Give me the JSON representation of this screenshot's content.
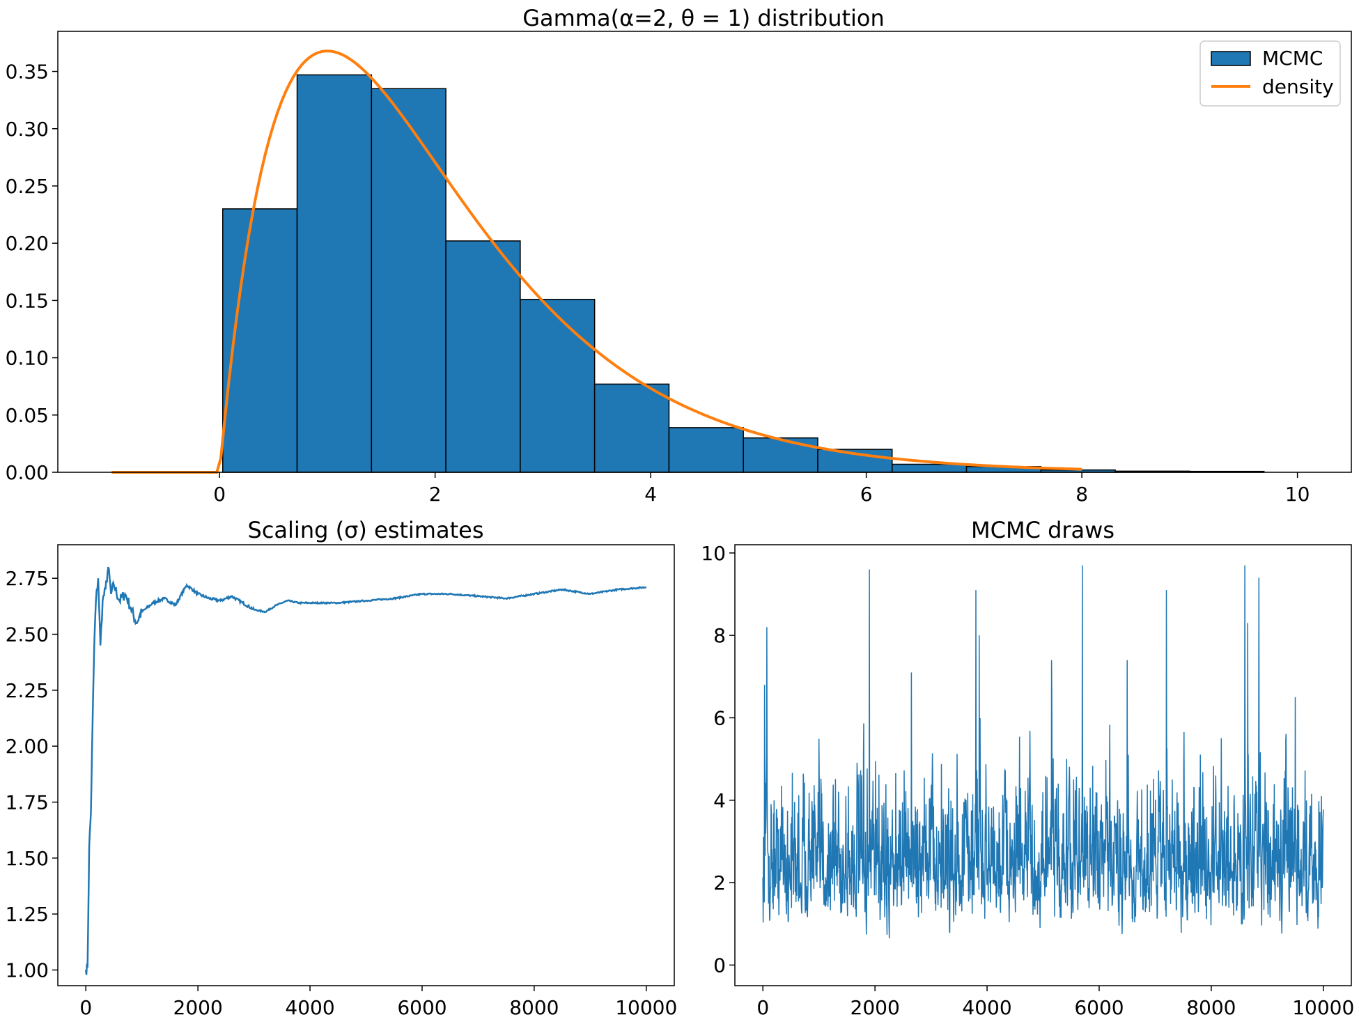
{
  "colors": {
    "hist": "#1f77b4",
    "density": "#ff7f0e",
    "trace": "#1f77b4",
    "edge": "#000000"
  },
  "chart_data": [
    {
      "type": "bar",
      "name": "gamma-histogram",
      "title": "Gamma(α=2, θ = 1) distribution",
      "xlim": [
        -1.5,
        10.5
      ],
      "ylim": [
        0,
        0.385
      ],
      "xticks": [
        0,
        2,
        4,
        6,
        8,
        10
      ],
      "yticks": [
        0.0,
        0.05,
        0.1,
        0.15,
        0.2,
        0.25,
        0.3,
        0.35
      ],
      "xlabel": "",
      "ylabel": "",
      "bin_edges": [
        0.03,
        0.72,
        1.41,
        2.1,
        2.79,
        3.48,
        4.17,
        4.86,
        5.55,
        6.24,
        6.93,
        7.62,
        8.31,
        9.0,
        9.69
      ],
      "values": [
        0.23,
        0.347,
        0.335,
        0.202,
        0.151,
        0.077,
        0.039,
        0.03,
        0.02,
        0.007,
        0.005,
        0.002,
        0.001,
        0.0008
      ],
      "density": {
        "x_min": -1.0,
        "x_max": 8.0,
        "formula": "x*exp(-x) for x>=0"
      },
      "legend": [
        {
          "label": "MCMC",
          "kind": "patch"
        },
        {
          "label": "density",
          "kind": "line"
        }
      ],
      "legend_position": "top-right",
      "grid": false
    },
    {
      "type": "line",
      "name": "scaling-estimates",
      "title": "Scaling (σ) estimates",
      "xlim": [
        -500,
        10500
      ],
      "ylim": [
        0.93,
        2.9
      ],
      "xticks": [
        0,
        2000,
        4000,
        6000,
        8000,
        10000
      ],
      "yticks": [
        1.0,
        1.25,
        1.5,
        1.75,
        2.0,
        2.25,
        2.5,
        2.75
      ],
      "xlabel": "",
      "ylabel": "",
      "x": [
        0,
        30,
        60,
        90,
        120,
        150,
        180,
        220,
        260,
        300,
        350,
        400,
        450,
        500,
        600,
        700,
        800,
        900,
        1000,
        1200,
        1400,
        1600,
        1800,
        2000,
        2200,
        2400,
        2600,
        2800,
        3000,
        3200,
        3400,
        3600,
        3800,
        4000,
        4500,
        5000,
        5500,
        6000,
        6500,
        7000,
        7500,
        8000,
        8500,
        9000,
        9500,
        10000
      ],
      "y": [
        1.0,
        1.01,
        1.55,
        1.7,
        2.1,
        2.45,
        2.65,
        2.75,
        2.45,
        2.65,
        2.7,
        2.8,
        2.68,
        2.72,
        2.65,
        2.68,
        2.62,
        2.55,
        2.6,
        2.64,
        2.66,
        2.63,
        2.72,
        2.68,
        2.66,
        2.65,
        2.67,
        2.64,
        2.61,
        2.6,
        2.63,
        2.65,
        2.64,
        2.64,
        2.64,
        2.65,
        2.66,
        2.68,
        2.68,
        2.67,
        2.66,
        2.68,
        2.7,
        2.68,
        2.7,
        2.71
      ],
      "grid": false
    },
    {
      "type": "line",
      "name": "mcmc-draws",
      "title": "MCMC draws",
      "xlim": [
        -500,
        10500
      ],
      "ylim": [
        -0.5,
        10.2
      ],
      "xticks": [
        0,
        2000,
        4000,
        6000,
        8000,
        10000
      ],
      "yticks": [
        0,
        2,
        4,
        6,
        8,
        10
      ],
      "xlabel": "",
      "ylabel": "",
      "n_draws": 10000,
      "typical_range": [
        0.1,
        5.5
      ],
      "peaks": [
        {
          "x": 30,
          "y": 6.8
        },
        {
          "x": 70,
          "y": 8.2
        },
        {
          "x": 1900,
          "y": 9.6
        },
        {
          "x": 2650,
          "y": 7.1
        },
        {
          "x": 3800,
          "y": 9.1
        },
        {
          "x": 3860,
          "y": 8.0
        },
        {
          "x": 5150,
          "y": 7.4
        },
        {
          "x": 5700,
          "y": 9.7
        },
        {
          "x": 6500,
          "y": 7.4
        },
        {
          "x": 7200,
          "y": 9.1
        },
        {
          "x": 8600,
          "y": 9.7
        },
        {
          "x": 8650,
          "y": 8.3
        },
        {
          "x": 8850,
          "y": 9.4
        },
        {
          "x": 9500,
          "y": 6.5
        }
      ],
      "grid": false
    }
  ]
}
